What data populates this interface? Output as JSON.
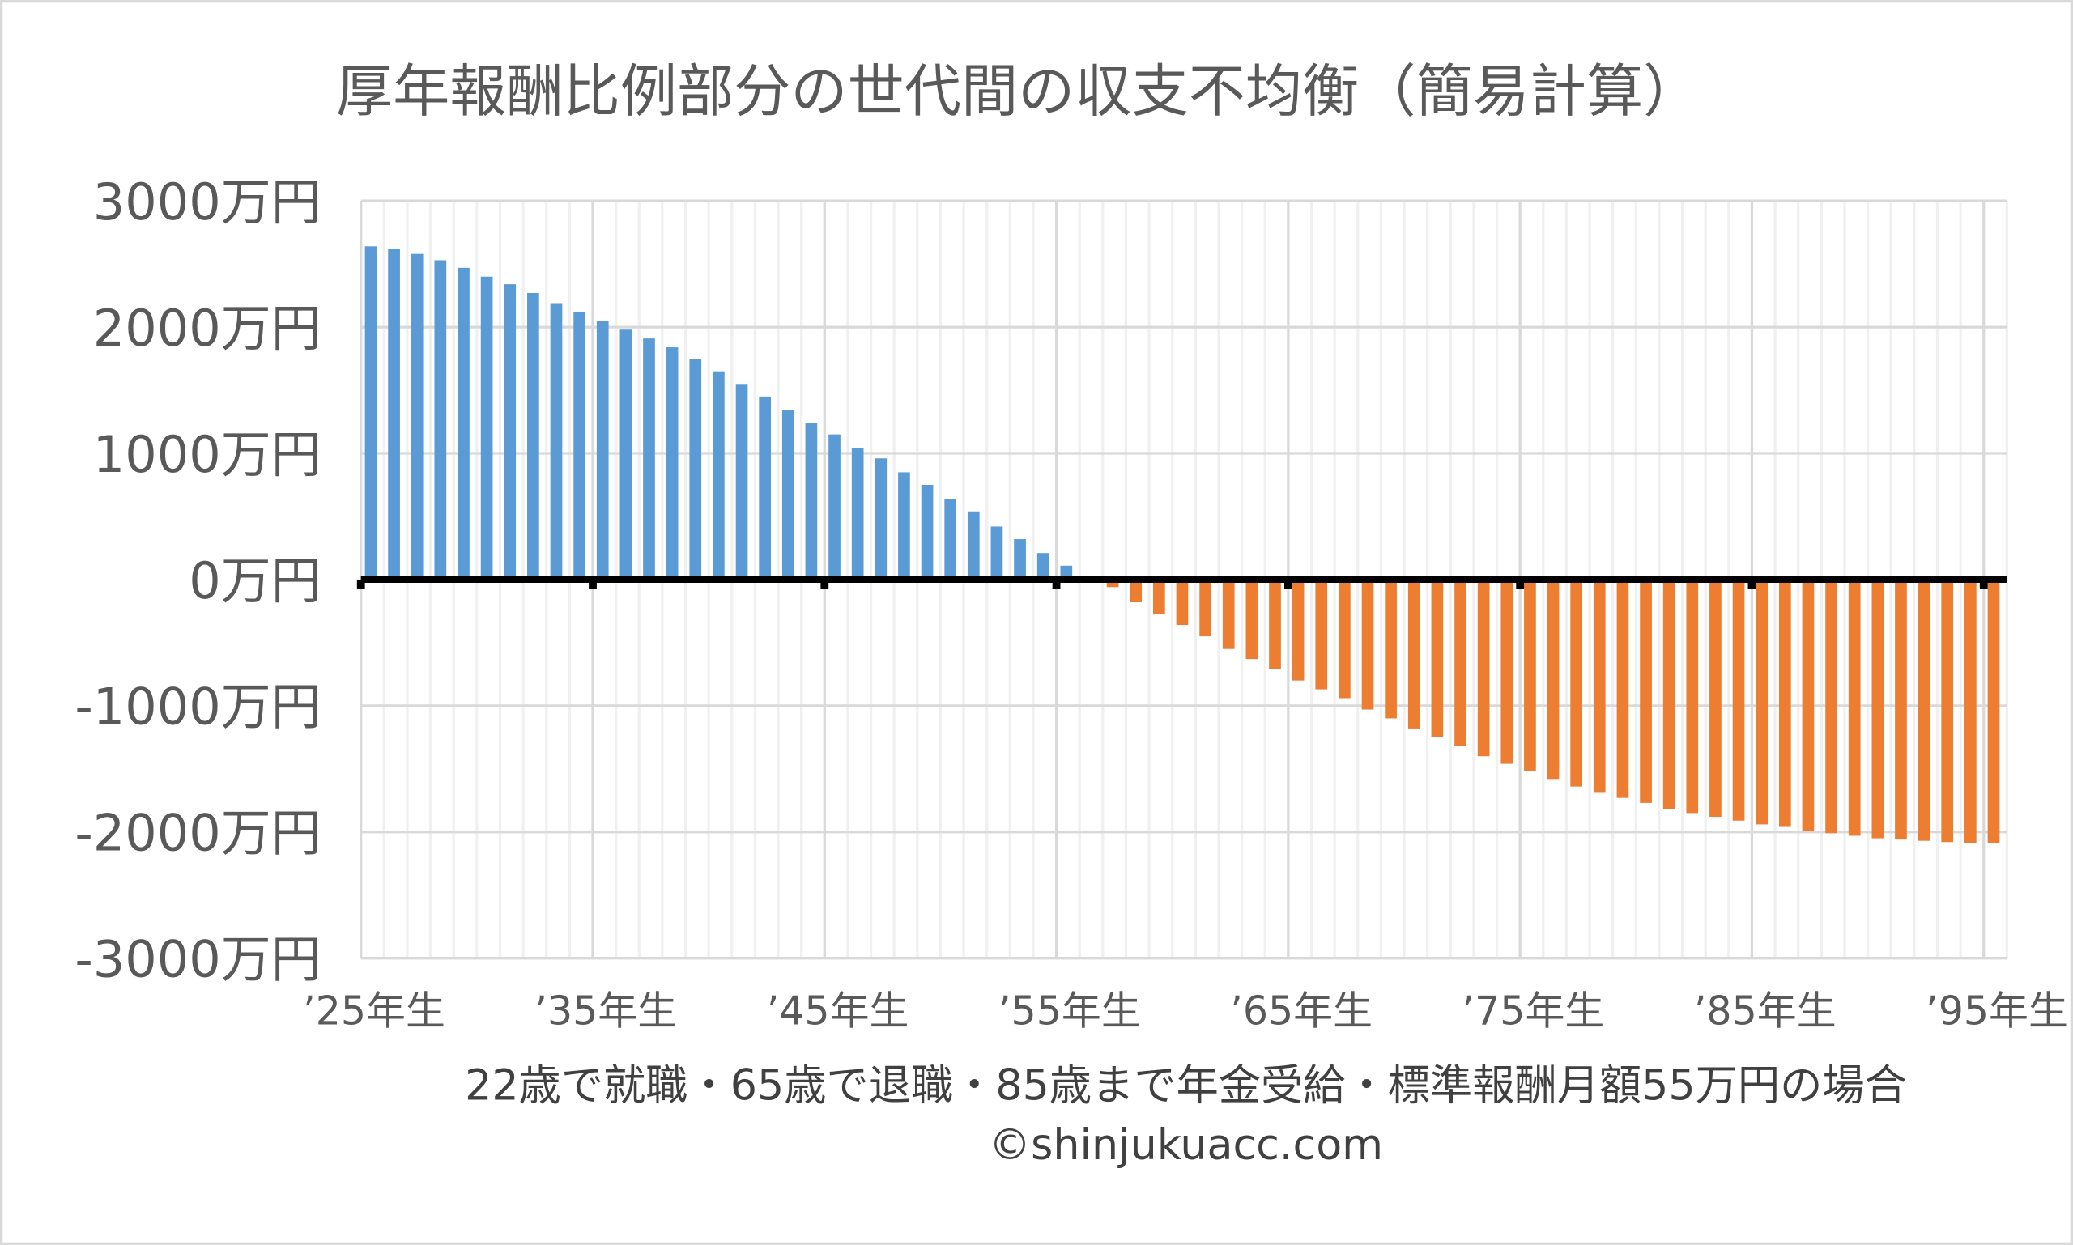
{
  "chart_data": {
    "type": "bar",
    "title": "厚年報酬比例部分の世代間の収支不均衡（簡易計算）",
    "xlabel": "22歳で就職・65歳で退職・85歳まで年金受給・標準報酬月額55万円の場合",
    "credit": "©shinjukuacc.com",
    "ylim": [
      -3000,
      3000
    ],
    "y_ticks": [
      {
        "value": 3000,
        "label": "3000万円"
      },
      {
        "value": 2000,
        "label": "2000万円"
      },
      {
        "value": 1000,
        "label": "1000万円"
      },
      {
        "value": 0,
        "label": "0万円"
      },
      {
        "value": -1000,
        "label": "-1000万円"
      },
      {
        "value": -2000,
        "label": "-2000万円"
      },
      {
        "value": -3000,
        "label": "-3000万円"
      }
    ],
    "x_ticks": [
      {
        "year": 1925,
        "label": "’25年生"
      },
      {
        "year": 1935,
        "label": "’35年生"
      },
      {
        "year": 1945,
        "label": "’45年生"
      },
      {
        "year": 1955,
        "label": "’55年生"
      },
      {
        "year": 1965,
        "label": "’65年生"
      },
      {
        "year": 1975,
        "label": "’75年生"
      },
      {
        "year": 1985,
        "label": "’85年生"
      },
      {
        "year": 1995,
        "label": "’95年生"
      }
    ],
    "x_start": 1925,
    "x_end": 1995,
    "grid": true,
    "units": "万円",
    "colors": {
      "positive": "#5B9BD5",
      "negative": "#ED7D31",
      "axis": "#000000",
      "grid": "#D9D9D9"
    },
    "values": [
      2640,
      2620,
      2580,
      2530,
      2470,
      2400,
      2340,
      2270,
      2190,
      2120,
      2050,
      1980,
      1910,
      1840,
      1750,
      1650,
      1550,
      1450,
      1340,
      1240,
      1150,
      1040,
      960,
      850,
      750,
      640,
      540,
      420,
      320,
      210,
      110,
      0,
      -60,
      -180,
      -270,
      -360,
      -450,
      -550,
      -630,
      -710,
      -800,
      -870,
      -940,
      -1030,
      -1100,
      -1180,
      -1250,
      -1320,
      -1400,
      -1460,
      -1520,
      -1580,
      -1640,
      -1690,
      -1730,
      -1770,
      -1820,
      -1850,
      -1880,
      -1910,
      -1940,
      -1960,
      -1990,
      -2010,
      -2030,
      -2050,
      -2060,
      -2070,
      -2080,
      -2090,
      -2090
    ]
  }
}
